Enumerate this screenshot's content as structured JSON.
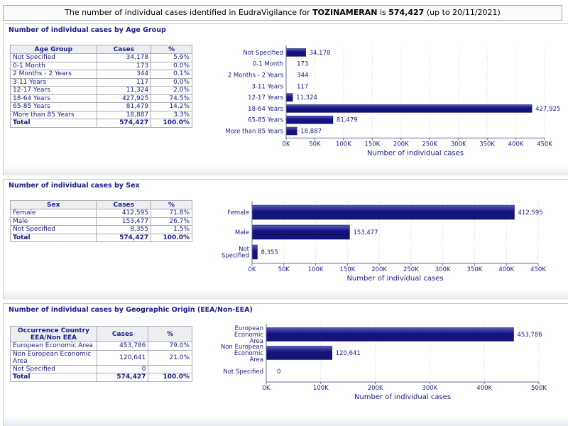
{
  "banner": {
    "prefix": "The number of individual cases identified in EudraVigilance for",
    "product": "TOZINAMERAN",
    "connector": "is",
    "total": "574,427",
    "suffix": "(up to 20/11/2021)"
  },
  "colors": {
    "bar_dark": "#13137a",
    "bar_light": "#5a5ac8",
    "text": "#1b1b8a",
    "grid": "#d0d4de"
  },
  "sections": [
    {
      "title": "Number of individual cases by Age Group",
      "table": {
        "headers": [
          "Age Group",
          "Cases",
          "%"
        ],
        "rows": [
          [
            "Not Specified",
            "34,178",
            "5.9%"
          ],
          [
            "0-1 Month",
            "173",
            "0.0%"
          ],
          [
            "2 Months - 2 Years",
            "344",
            "0.1%"
          ],
          [
            "3-11 Years",
            "117",
            "0.0%"
          ],
          [
            "12-17 Years",
            "11,324",
            "2.0%"
          ],
          [
            "18-64 Years",
            "427,925",
            "74.5%"
          ],
          [
            "65-85 Years",
            "81,479",
            "14.2%"
          ],
          [
            "More than 85 Years",
            "18,887",
            "3.3%"
          ]
        ],
        "total": [
          "Total",
          "574,427",
          "100.0%"
        ]
      }
    },
    {
      "title": "Number of individual cases by Sex",
      "table": {
        "headers": [
          "Sex",
          "Cases",
          "%"
        ],
        "rows": [
          [
            "Female",
            "412,595",
            "71.8%"
          ],
          [
            "Male",
            "153,477",
            "26.7%"
          ],
          [
            "Not Specified",
            "8,355",
            "1.5%"
          ]
        ],
        "total": [
          "Total",
          "574,427",
          "100.0%"
        ]
      }
    },
    {
      "title": "Number of individual cases by Geographic Origin (EEA/Non-EEA)",
      "table": {
        "headers": [
          "Occurrence Country EEA/Non EEA",
          "Cases",
          "%"
        ],
        "rows": [
          [
            "European Economic Area",
            "453,786",
            "79.0%"
          ],
          [
            "Non European Economic Area",
            "120,641",
            "21.0%"
          ],
          [
            "Not Specified",
            "0",
            ""
          ]
        ],
        "total": [
          "Total",
          "574,427",
          "100.0%"
        ]
      }
    }
  ],
  "chart_data": [
    {
      "type": "bar",
      "orientation": "horizontal",
      "categories": [
        "Not Specified",
        "0-1 Month",
        "2 Months - 2 Years",
        "3-11 Years",
        "12-17 Years",
        "18-64 Years",
        "65-85 Years",
        "More than 85 Years"
      ],
      "category_lines": [
        [
          "Not Specified"
        ],
        [
          "0-1 Month"
        ],
        [
          "2 Months - 2 Years"
        ],
        [
          "3-11 Years"
        ],
        [
          "12-17 Years"
        ],
        [
          "18-64 Years"
        ],
        [
          "65-85 Years"
        ],
        [
          "More than 85 Years"
        ]
      ],
      "values": [
        34178,
        173,
        344,
        117,
        11324,
        427925,
        81479,
        18887
      ],
      "data_labels": [
        "34,178",
        "173",
        "344",
        "117",
        "11,324",
        "427,925",
        "81,479",
        "18,887"
      ],
      "xlim": [
        0,
        450000
      ],
      "ticks": [
        0,
        50000,
        100000,
        150000,
        200000,
        250000,
        300000,
        350000,
        400000,
        450000
      ],
      "tick_labels": [
        "0K",
        "50K",
        "100K",
        "150K",
        "200K",
        "250K",
        "300K",
        "350K",
        "400K",
        "450K"
      ],
      "xlabel": "Number of individual cases",
      "ylabel": "",
      "grid": true
    },
    {
      "type": "bar",
      "orientation": "horizontal",
      "categories": [
        "Female",
        "Male",
        "Not Specified"
      ],
      "category_lines": [
        [
          "Female"
        ],
        [
          "Male"
        ],
        [
          "Not",
          "Specified"
        ]
      ],
      "values": [
        412595,
        153477,
        8355
      ],
      "data_labels": [
        "412,595",
        "153,477",
        "8,355"
      ],
      "xlim": [
        0,
        450000
      ],
      "ticks": [
        0,
        50000,
        100000,
        150000,
        200000,
        250000,
        300000,
        350000,
        400000,
        450000
      ],
      "tick_labels": [
        "0K",
        "50K",
        "100K",
        "150K",
        "200K",
        "250K",
        "300K",
        "350K",
        "400K",
        "450K"
      ],
      "xlabel": "Number of individual cases",
      "ylabel": "",
      "grid": true
    },
    {
      "type": "bar",
      "orientation": "horizontal",
      "categories": [
        "European Economic Area",
        "Non European Economic Area",
        "Not Specified"
      ],
      "category_lines": [
        [
          "European",
          "Economic",
          "Area"
        ],
        [
          "Non European",
          "Economic",
          "Area"
        ],
        [
          "Not Specified"
        ]
      ],
      "values": [
        453786,
        120641,
        0
      ],
      "data_labels": [
        "453,786",
        "120,641",
        "0"
      ],
      "xlim": [
        0,
        500000
      ],
      "ticks": [
        0,
        100000,
        200000,
        300000,
        400000,
        500000
      ],
      "tick_labels": [
        "0K",
        "100K",
        "200K",
        "300K",
        "400K",
        "500K"
      ],
      "xlabel": "Number of individual cases",
      "ylabel": "",
      "grid": true
    }
  ]
}
